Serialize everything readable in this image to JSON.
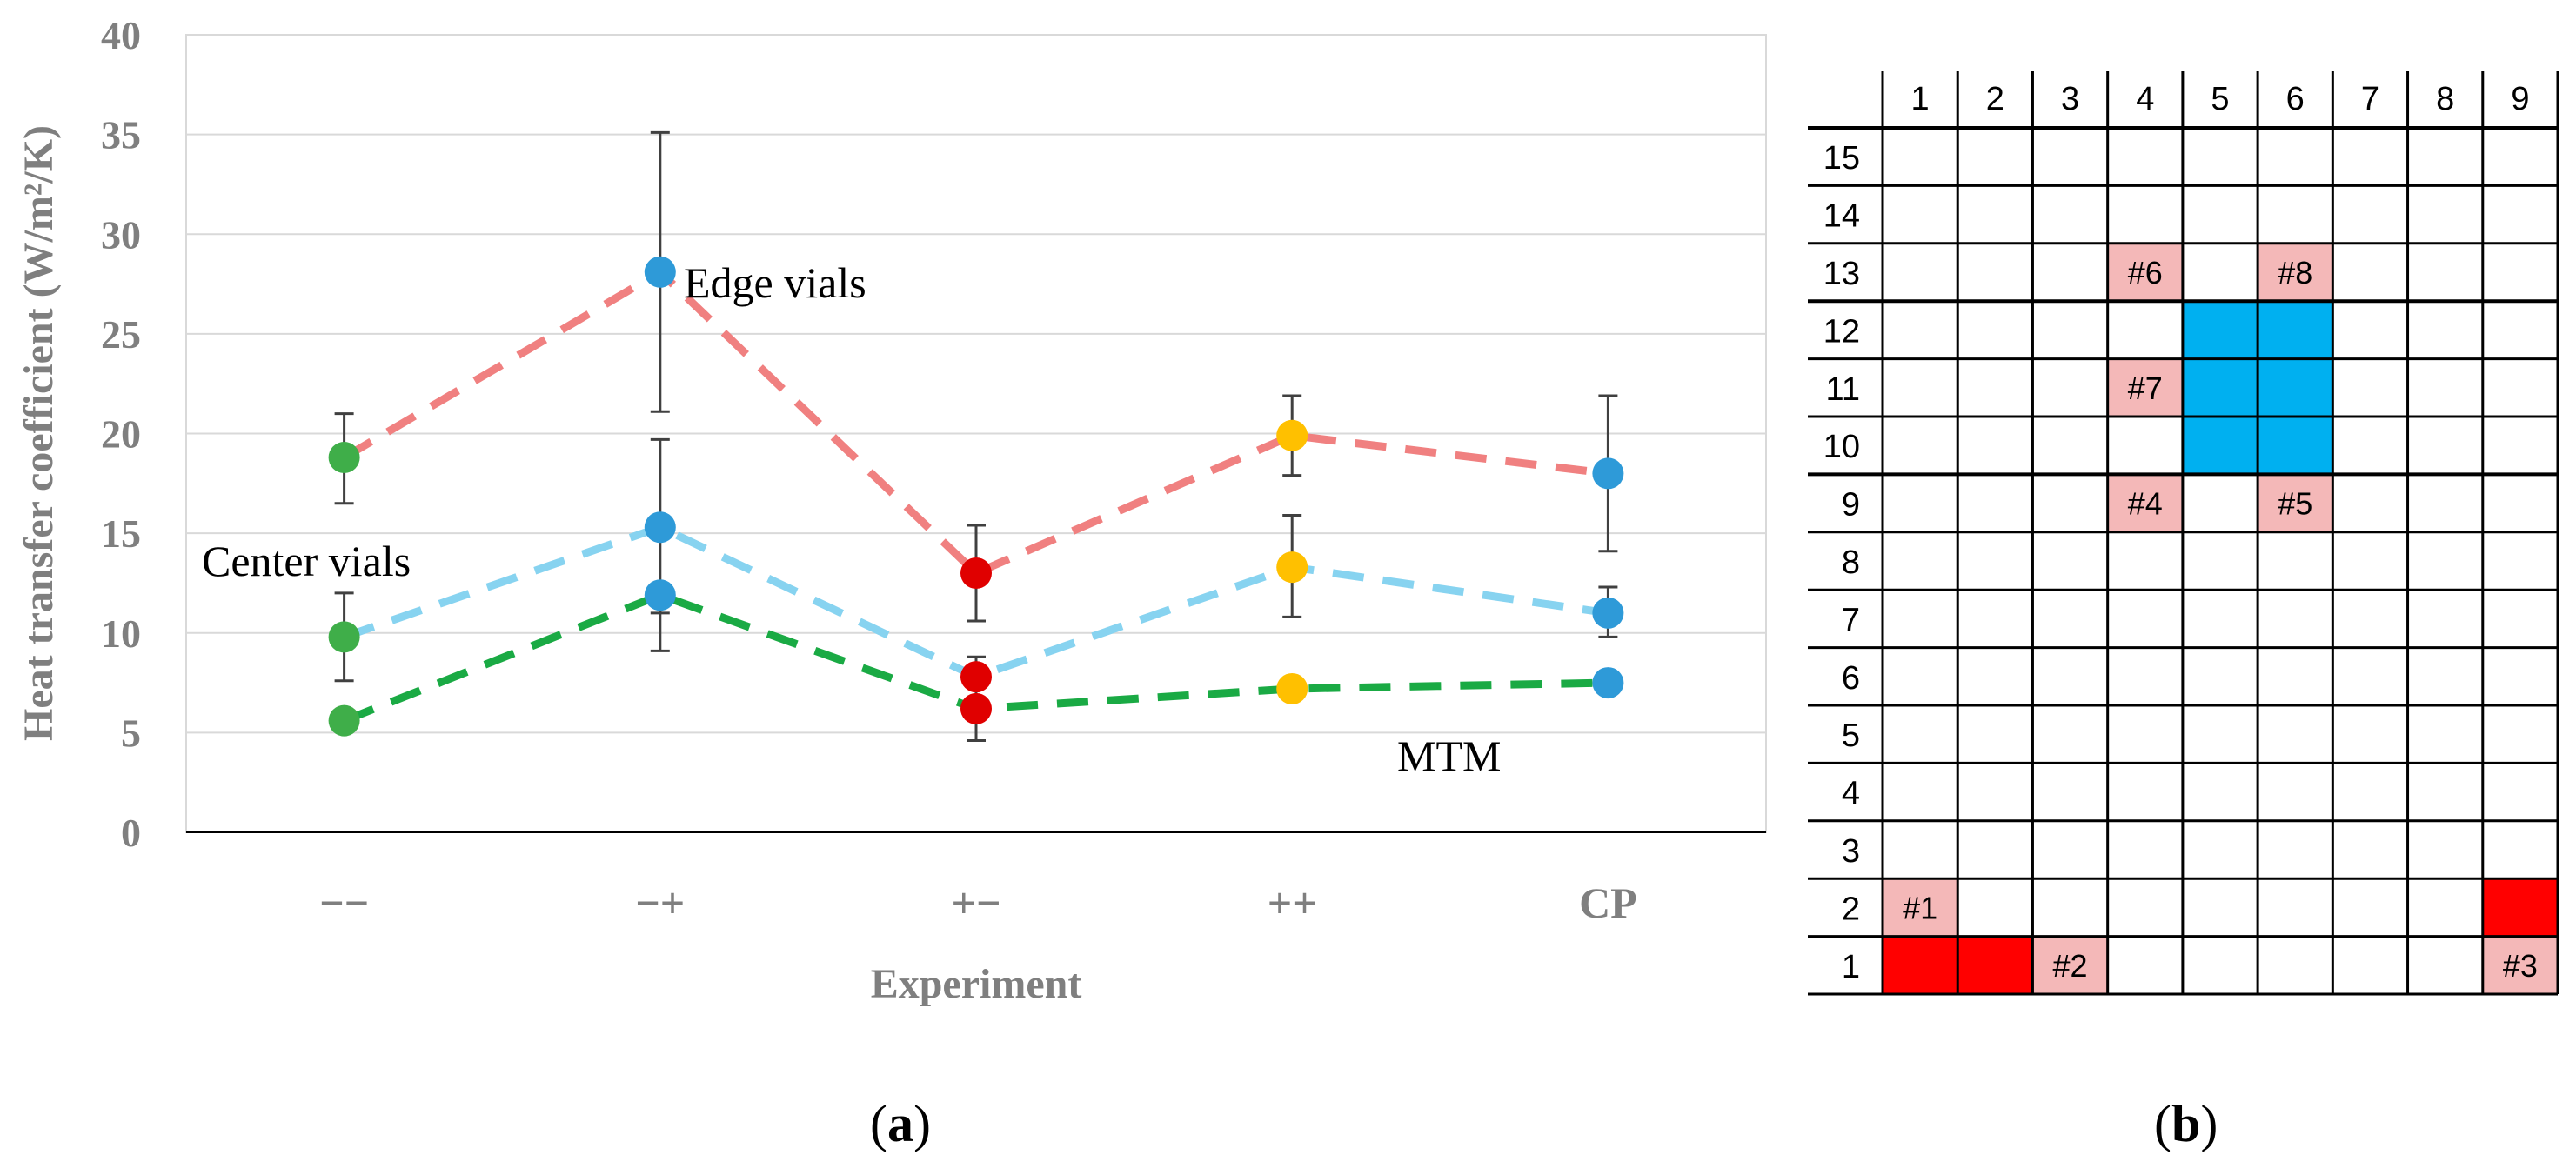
{
  "chart_data": [
    {
      "type": "line",
      "panel_label_open": "(",
      "panel_label_letter": "a",
      "panel_label_close": ")",
      "title": "",
      "ylabel": "Heat transfer coefficient (W/m²/K)",
      "xlabel": "Experiment",
      "categories": [
        "−−",
        "−+",
        "+−",
        "++",
        "CP"
      ],
      "ylim": [
        0,
        40
      ],
      "yticks": [
        0,
        5,
        10,
        15,
        20,
        25,
        30,
        35,
        40
      ],
      "grid": true,
      "series": [
        {
          "name": "Edge vials",
          "line_color": "#f08080",
          "values": [
            18.8,
            28.1,
            13.0,
            19.9,
            18.0
          ],
          "error_low": [
            16.5,
            21.1,
            10.6,
            17.9,
            14.1
          ],
          "error_high": [
            21.0,
            35.1,
            15.4,
            21.9,
            21.9
          ],
          "marker_colors": [
            "#3fae49",
            "#2e9ad8",
            "#e00000",
            "#ffc000",
            "#2e9ad8"
          ]
        },
        {
          "name": "Center vials",
          "line_color": "#87d3f0",
          "values": [
            9.8,
            15.3,
            7.8,
            13.3,
            11.0
          ],
          "error_low": [
            7.6,
            11.0,
            6.6,
            10.8,
            9.8
          ],
          "error_high": [
            12.0,
            19.7,
            8.8,
            15.9,
            12.3
          ],
          "marker_colors": [
            "#3fae49",
            "#2e9ad8",
            "#e00000",
            "#ffc000",
            "#2e9ad8"
          ]
        },
        {
          "name": "MTM",
          "line_color": "#1aaa44",
          "values": [
            5.6,
            11.9,
            6.2,
            7.2,
            7.5
          ],
          "error_low": [
            5.6,
            9.1,
            4.6,
            7.2,
            7.5
          ],
          "error_high": [
            5.6,
            11.9,
            6.2,
            7.2,
            7.5
          ],
          "marker_colors": [
            "#3fae49",
            "#2e9ad8",
            "#e00000",
            "#ffc000",
            "#2e9ad8"
          ]
        }
      ],
      "annotations": [
        "Edge vials",
        "Center vials",
        "MTM"
      ]
    },
    {
      "type": "heatmap",
      "panel_label_open": "(",
      "panel_label_letter": "b",
      "panel_label_close": ")",
      "columns": [
        "1",
        "2",
        "3",
        "4",
        "5",
        "6",
        "7",
        "8",
        "9"
      ],
      "rows": [
        "15",
        "14",
        "13",
        "12",
        "11",
        "10",
        "9",
        "8",
        "7",
        "6",
        "5",
        "4",
        "3",
        "2",
        "1"
      ],
      "colors": {
        "red": "#ff0000",
        "blue": "#00b0f0",
        "pink": "#f4b8b8"
      },
      "colored_cells": [
        {
          "row": "1",
          "col": "1",
          "color": "red",
          "label": ""
        },
        {
          "row": "1",
          "col": "2",
          "color": "red",
          "label": ""
        },
        {
          "row": "2",
          "col": "9",
          "color": "red",
          "label": ""
        },
        {
          "row": "12",
          "col": "5",
          "color": "blue",
          "label": ""
        },
        {
          "row": "12",
          "col": "6",
          "color": "blue",
          "label": ""
        },
        {
          "row": "11",
          "col": "5",
          "color": "blue",
          "label": ""
        },
        {
          "row": "11",
          "col": "6",
          "color": "blue",
          "label": ""
        },
        {
          "row": "10",
          "col": "5",
          "color": "blue",
          "label": ""
        },
        {
          "row": "10",
          "col": "6",
          "color": "blue",
          "label": ""
        },
        {
          "row": "2",
          "col": "1",
          "color": "pink",
          "label": "#1"
        },
        {
          "row": "1",
          "col": "3",
          "color": "pink",
          "label": "#2"
        },
        {
          "row": "1",
          "col": "9",
          "color": "pink",
          "label": "#3"
        },
        {
          "row": "9",
          "col": "4",
          "color": "pink",
          "label": "#4"
        },
        {
          "row": "9",
          "col": "6",
          "color": "pink",
          "label": "#5"
        },
        {
          "row": "13",
          "col": "4",
          "color": "pink",
          "label": "#6"
        },
        {
          "row": "11",
          "col": "4",
          "color": "pink",
          "label": "#7"
        },
        {
          "row": "13",
          "col": "6",
          "color": "pink",
          "label": "#8"
        }
      ]
    }
  ]
}
